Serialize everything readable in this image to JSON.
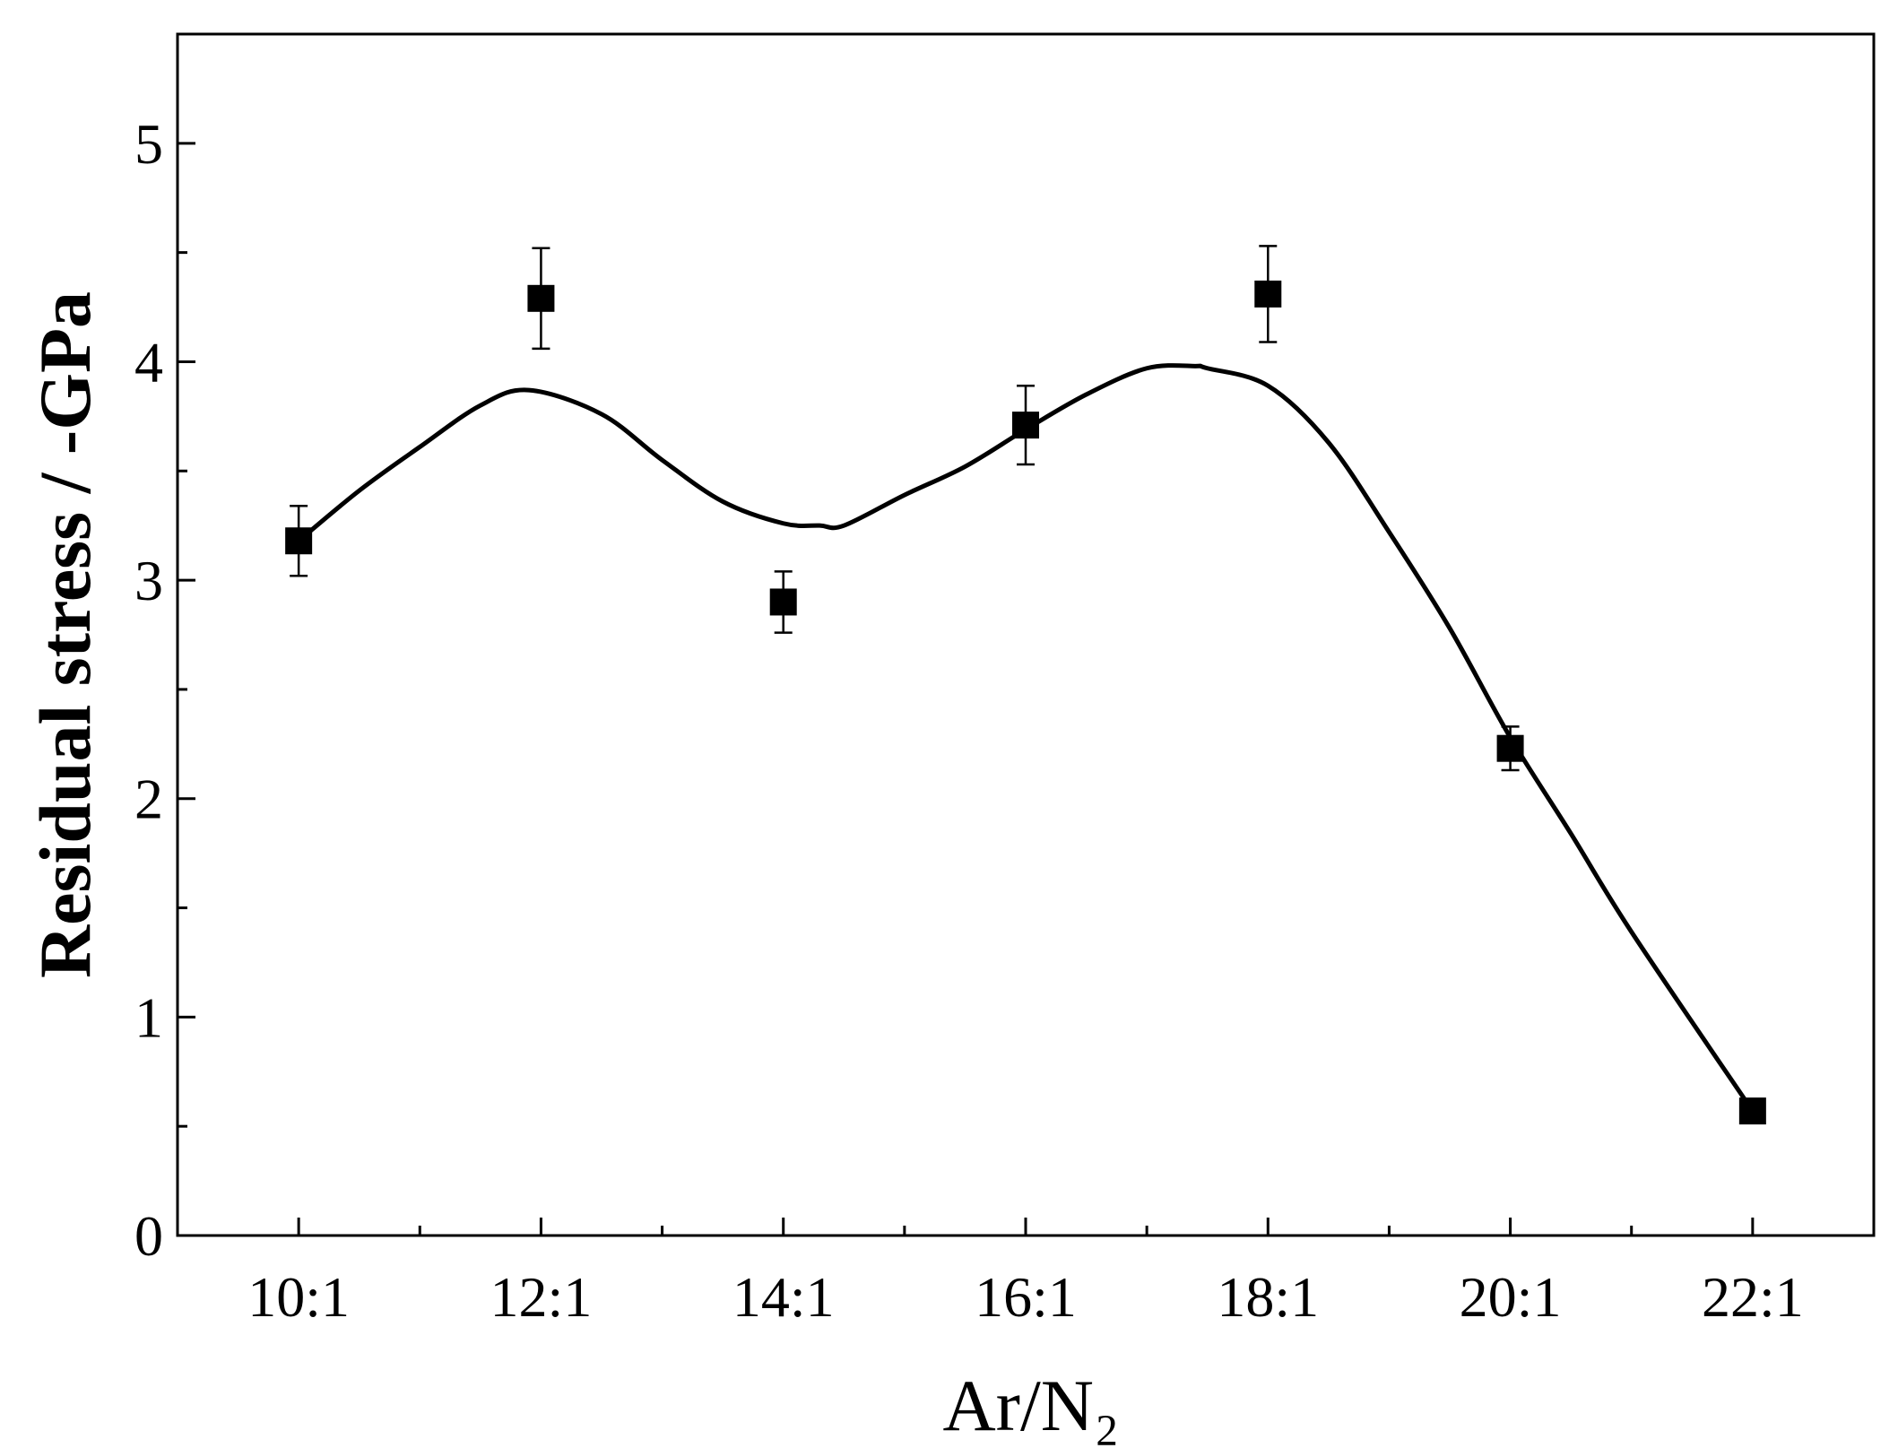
{
  "chart_data": {
    "type": "scatter",
    "x_label": "Ar/N₂",
    "y_label": "Residual stress / -GPa",
    "xlim": [
      9,
      23
    ],
    "ylim": [
      0,
      5.5
    ],
    "xticks": [
      {
        "value": 10,
        "label": "10:1"
      },
      {
        "value": 12,
        "label": "12:1"
      },
      {
        "value": 14,
        "label": "14:1"
      },
      {
        "value": 16,
        "label": "16:1"
      },
      {
        "value": 18,
        "label": "18:1"
      },
      {
        "value": 20,
        "label": "20:1"
      },
      {
        "value": 22,
        "label": "22:1"
      }
    ],
    "xminor": [
      11,
      13,
      15,
      17,
      19,
      21
    ],
    "yticks": [
      0,
      1,
      2,
      3,
      4,
      5
    ],
    "yminor": [
      0.5,
      1.5,
      2.5,
      3.5,
      4.5
    ],
    "series": [
      {
        "type": "scatter",
        "color": "#000000",
        "x": [
          10,
          12,
          14,
          16,
          18,
          20,
          22
        ],
        "values": [
          3.18,
          4.29,
          2.9,
          3.71,
          4.31,
          2.23,
          0.57
        ],
        "errors": [
          0.16,
          0.23,
          0.14,
          0.18,
          0.22,
          0.1,
          0
        ]
      },
      {
        "type": "line",
        "color": "#000000",
        "x": [
          10,
          10.5,
          11,
          11.5,
          11.9,
          12.5,
          13,
          13.5,
          14,
          14.3,
          14.5,
          15,
          15.5,
          16,
          16.5,
          17,
          17.4,
          17.5,
          18,
          18.5,
          19,
          19.5,
          20,
          20.5,
          21,
          22
        ],
        "values": [
          3.18,
          3.41,
          3.61,
          3.8,
          3.87,
          3.76,
          3.55,
          3.36,
          3.26,
          3.25,
          3.25,
          3.39,
          3.52,
          3.69,
          3.85,
          3.97,
          3.98,
          3.97,
          3.89,
          3.63,
          3.22,
          2.78,
          2.28,
          1.84,
          1.39,
          0.57
        ]
      }
    ]
  }
}
